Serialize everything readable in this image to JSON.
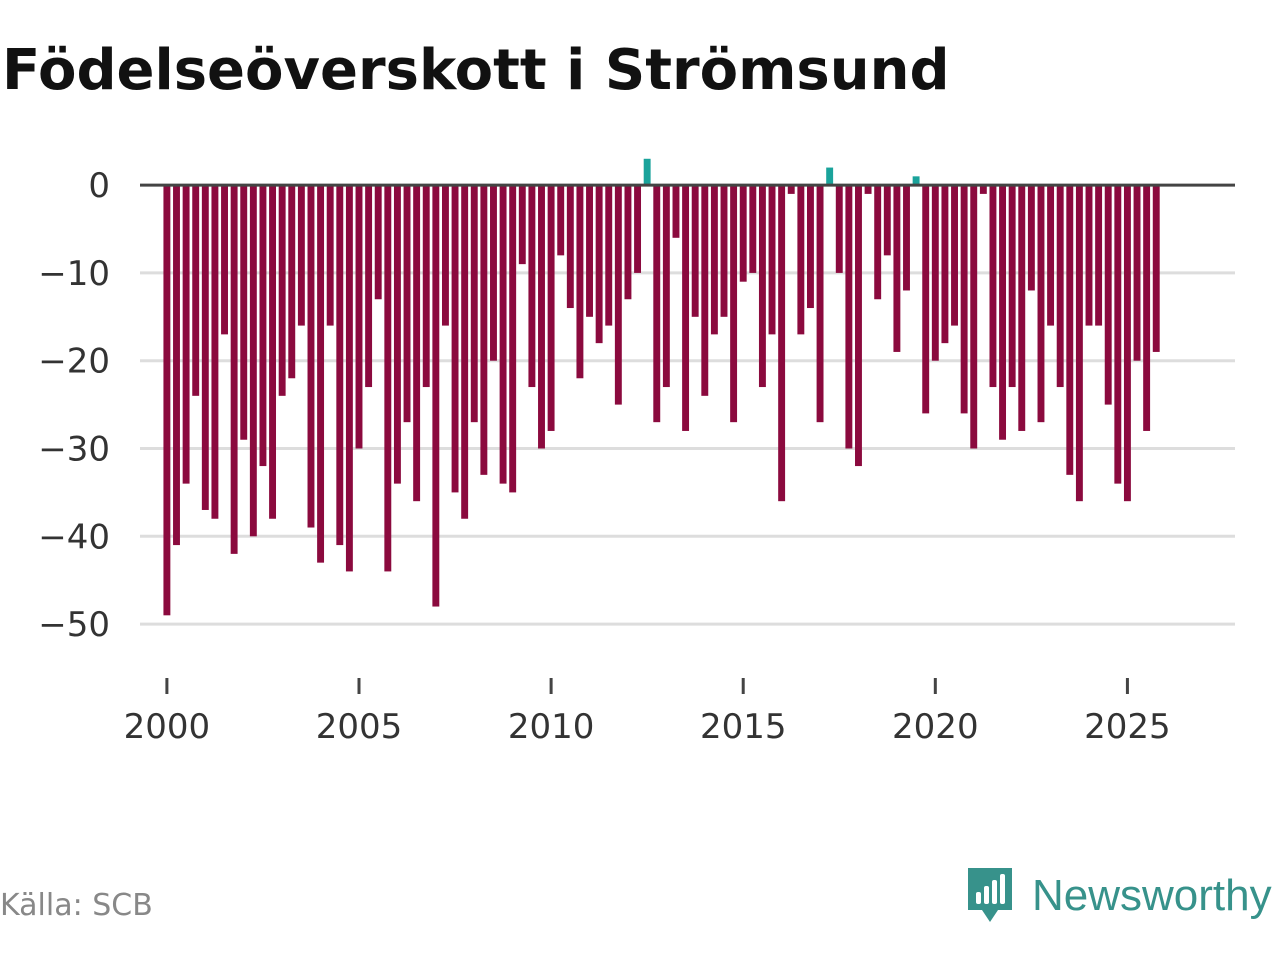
{
  "chart_data": {
    "type": "bar",
    "title": "Födelseöverskott i Strömsund",
    "xlabel": "",
    "ylabel": "",
    "x_start": 2000.0,
    "x_step": 0.25,
    "xlim": [
      1999.3,
      2027.8
    ],
    "ylim": [
      -55,
      4
    ],
    "x_ticks": [
      2000,
      2005,
      2010,
      2015,
      2020,
      2025
    ],
    "x_tick_labels": [
      "2000",
      "2005",
      "2010",
      "2015",
      "2020",
      "2025"
    ],
    "y_ticks": [
      0,
      -10,
      -20,
      -30,
      -40,
      -50
    ],
    "y_tick_labels": [
      "0",
      "−10",
      "−20",
      "−30",
      "−40",
      "−50"
    ],
    "grid": true,
    "values": [
      -49,
      -41,
      -34,
      -24,
      -37,
      -38,
      -17,
      -42,
      -29,
      -40,
      -32,
      -38,
      -24,
      -22,
      -16,
      -39,
      -43,
      -16,
      -41,
      -44,
      -30,
      -23,
      -13,
      -44,
      -34,
      -27,
      -36,
      -23,
      -48,
      -16,
      -35,
      -38,
      -27,
      -33,
      -20,
      -34,
      -35,
      -9,
      -23,
      -30,
      -28,
      -8,
      -14,
      -22,
      -15,
      -18,
      -16,
      -25,
      -13,
      -10,
      3,
      -27,
      -23,
      -6,
      -28,
      -15,
      -24,
      -17,
      -15,
      -27,
      -11,
      -10,
      -23,
      -17,
      -36,
      -1,
      -17,
      -14,
      -27,
      2,
      -10,
      -30,
      -32,
      -1,
      -13,
      -8,
      -19,
      -12,
      1,
      -26,
      -20,
      -18,
      -16,
      -26,
      -30,
      -1,
      -23,
      -29,
      -23,
      -28,
      -12,
      -27,
      -16,
      -23,
      -33,
      -36,
      -16,
      -16,
      -25,
      -34,
      -36,
      -20,
      -28,
      -19
    ],
    "colors": {
      "negative": "#8b0a3e",
      "positive": "#1aa39b",
      "zero_line": "#444444",
      "grid": "#dddddd",
      "axis_text": "#333333"
    }
  },
  "footer": {
    "source": "Källa: SCB",
    "brand": "Newsworthy"
  },
  "brand_color": "#37928b"
}
